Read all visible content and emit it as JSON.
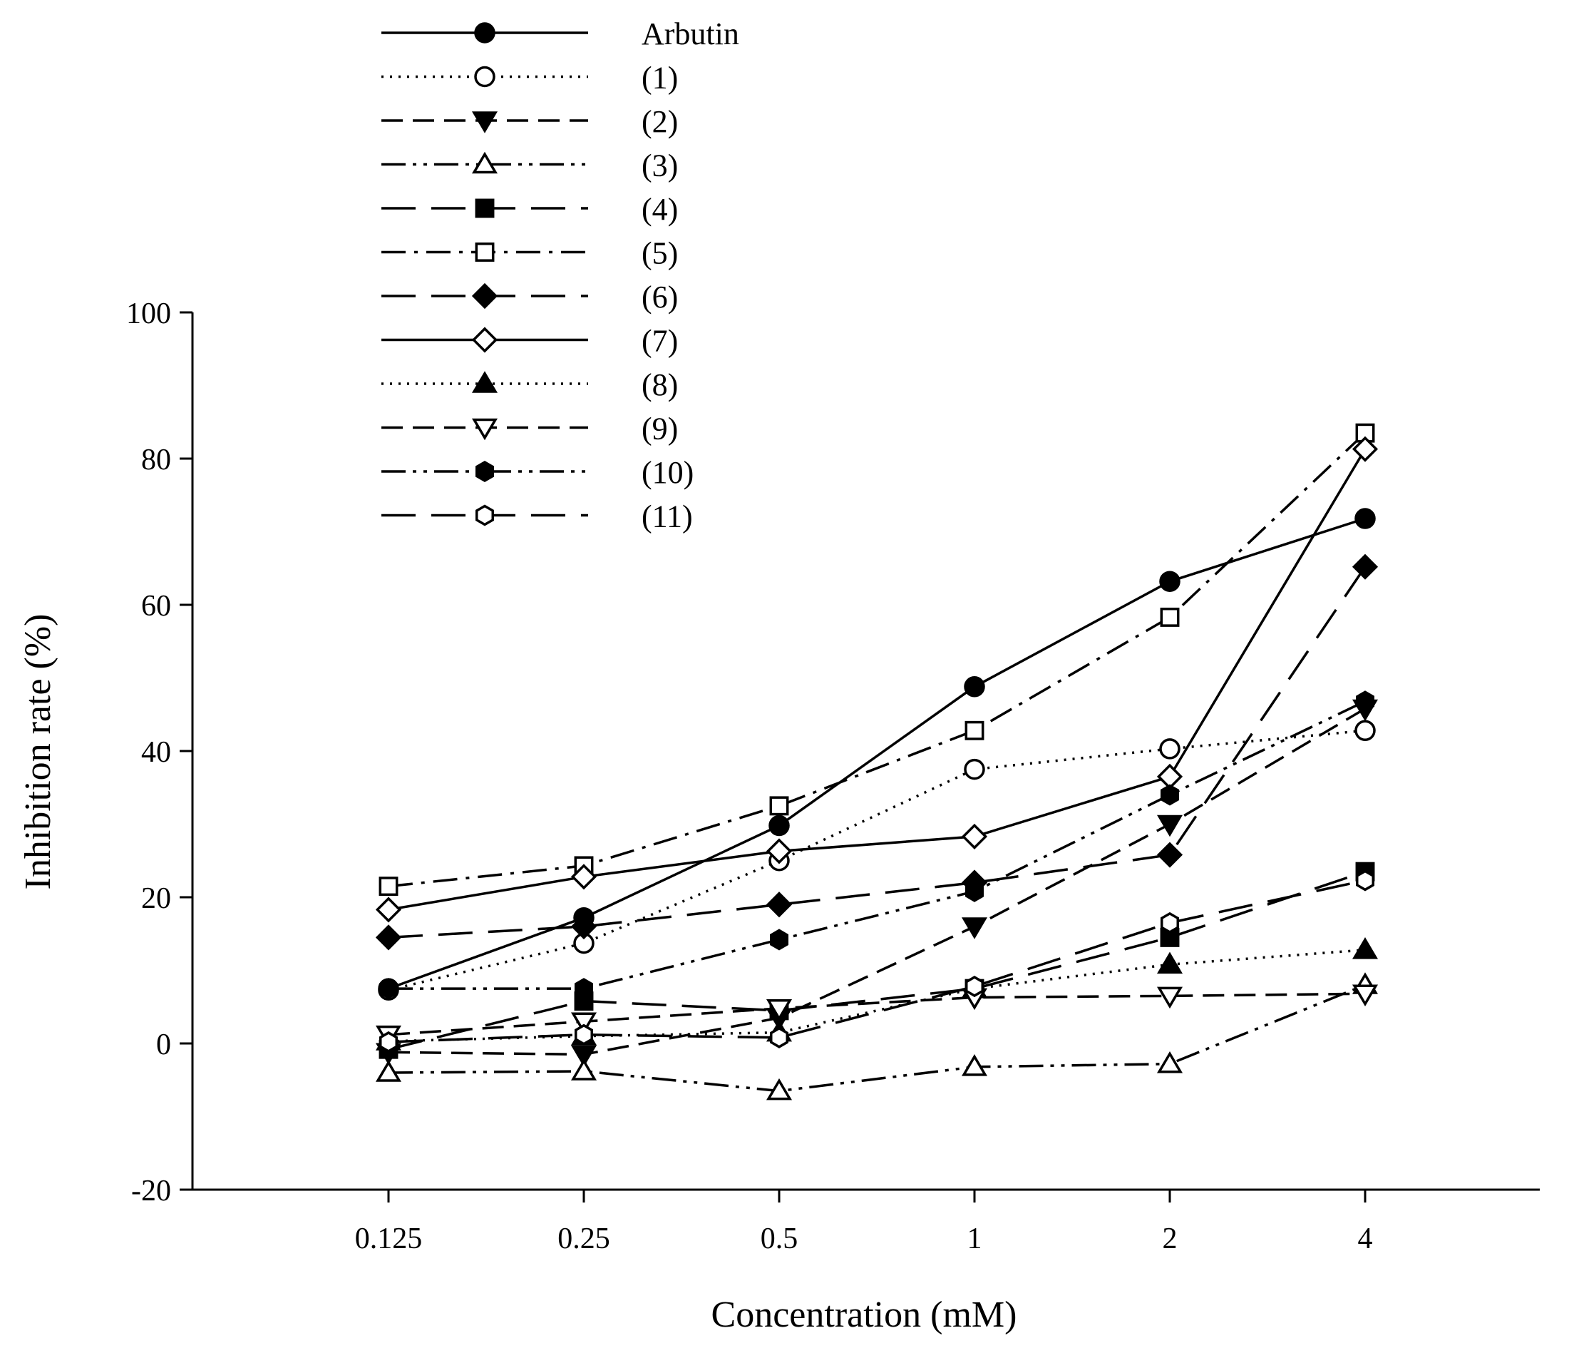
{
  "chart_data": {
    "type": "line",
    "title": "",
    "xlabel": "Concentration (mM)",
    "ylabel": "Inhibition rate (%)",
    "categories": [
      "0.125",
      "0.25",
      "0.5",
      "1",
      "2",
      "4"
    ],
    "ylim": [
      -20,
      100
    ],
    "yticks": [
      "-20",
      "0",
      "20",
      "40",
      "60",
      "80",
      "100"
    ],
    "grid": false,
    "legend_position": "top-left",
    "series": [
      {
        "name": "Arbutin",
        "marker": "circle-filled",
        "dash": "solid",
        "values": [
          7.5,
          17.2,
          29.8,
          48.8,
          63.2,
          71.8
        ]
      },
      {
        "name": "(1)",
        "marker": "circle-open",
        "dash": "dotted",
        "values": [
          7.3,
          13.7,
          25.0,
          37.5,
          40.3,
          42.8
        ]
      },
      {
        "name": "(2)",
        "marker": "triangle-down-filled",
        "dash": "dashed",
        "values": [
          -1.2,
          -1.5,
          3.5,
          16.0,
          30.0,
          45.8
        ]
      },
      {
        "name": "(3)",
        "marker": "triangle-up-open",
        "dash": "dash-dot-dot",
        "values": [
          -4.0,
          -3.8,
          -6.5,
          -3.2,
          -2.8,
          8.0
        ]
      },
      {
        "name": "(4)",
        "marker": "square-filled",
        "dash": "long-dash",
        "values": [
          -0.8,
          5.8,
          4.5,
          7.5,
          14.5,
          23.5
        ]
      },
      {
        "name": "(5)",
        "marker": "square-open",
        "dash": "dash-dot",
        "values": [
          21.5,
          24.3,
          32.5,
          42.8,
          58.3,
          83.5
        ]
      },
      {
        "name": "(6)",
        "marker": "diamond-filled",
        "dash": "long-dash",
        "values": [
          14.5,
          16.0,
          19.0,
          22.0,
          25.8,
          65.2
        ]
      },
      {
        "name": "(7)",
        "marker": "diamond-open",
        "dash": "solid",
        "values": [
          18.3,
          22.8,
          26.3,
          28.3,
          36.5,
          81.3
        ]
      },
      {
        "name": "(8)",
        "marker": "triangle-up-filled",
        "dash": "dotted",
        "values": [
          0.3,
          1.0,
          1.5,
          7.5,
          10.8,
          12.8
        ]
      },
      {
        "name": "(9)",
        "marker": "triangle-down-open",
        "dash": "dashed",
        "values": [
          1.2,
          3.0,
          4.8,
          6.3,
          6.5,
          6.8
        ]
      },
      {
        "name": "(10)",
        "marker": "hexagon-filled",
        "dash": "dash-dot-dot",
        "values": [
          7.5,
          7.5,
          14.2,
          20.8,
          34.0,
          46.8
        ]
      },
      {
        "name": "(11)",
        "marker": "hexagon-open",
        "dash": "long-dash",
        "values": [
          0.2,
          1.2,
          0.8,
          7.8,
          16.5,
          22.3
        ]
      }
    ]
  }
}
